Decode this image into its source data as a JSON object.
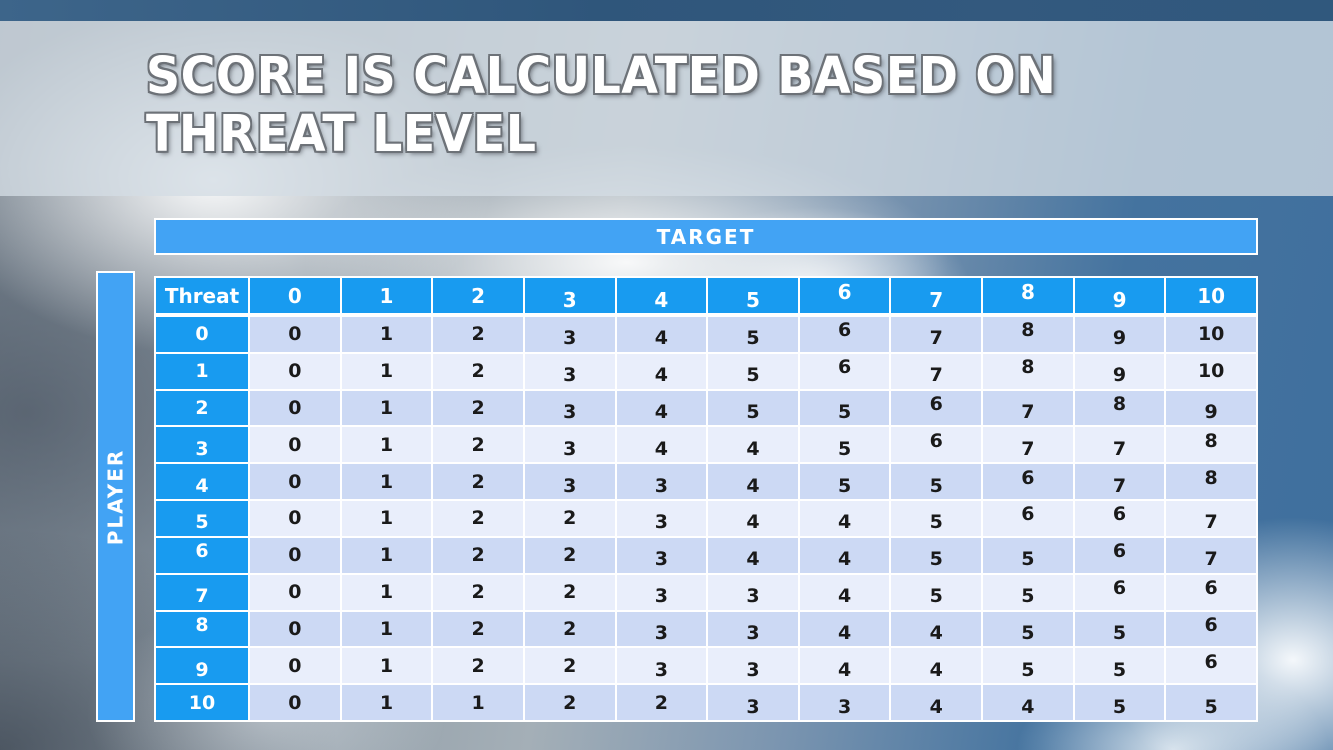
{
  "slide": {
    "title_line1": "SCORE IS CALCULATED BASED ON",
    "title_line2": "THREAT LEVEL"
  },
  "axes": {
    "target_label": "TARGET",
    "player_label": "PLAYER"
  },
  "table": {
    "corner_label": "Threat",
    "col_headers": [
      "0",
      "1",
      "2",
      "3",
      "4",
      "5",
      "6",
      "7",
      "8",
      "9",
      "10"
    ],
    "rows": [
      {
        "label": "0",
        "values": [
          "0",
          "1",
          "2",
          "3",
          "4",
          "5",
          "6",
          "7",
          "8",
          "9",
          "10"
        ]
      },
      {
        "label": "1",
        "values": [
          "0",
          "1",
          "2",
          "3",
          "4",
          "5",
          "6",
          "7",
          "8",
          "9",
          "10"
        ]
      },
      {
        "label": "2",
        "values": [
          "0",
          "1",
          "2",
          "3",
          "4",
          "5",
          "5",
          "6",
          "7",
          "8",
          "9"
        ]
      },
      {
        "label": "3",
        "values": [
          "0",
          "1",
          "2",
          "3",
          "4",
          "4",
          "5",
          "6",
          "7",
          "7",
          "8"
        ]
      },
      {
        "label": "4",
        "values": [
          "0",
          "1",
          "2",
          "3",
          "3",
          "4",
          "5",
          "5",
          "6",
          "7",
          "8"
        ]
      },
      {
        "label": "5",
        "values": [
          "0",
          "1",
          "2",
          "2",
          "3",
          "4",
          "4",
          "5",
          "6",
          "6",
          "7"
        ]
      },
      {
        "label": "6",
        "values": [
          "0",
          "1",
          "2",
          "2",
          "3",
          "4",
          "4",
          "5",
          "5",
          "6",
          "7"
        ]
      },
      {
        "label": "7",
        "values": [
          "0",
          "1",
          "2",
          "2",
          "3",
          "3",
          "4",
          "5",
          "5",
          "6",
          "6"
        ]
      },
      {
        "label": "8",
        "values": [
          "0",
          "1",
          "2",
          "2",
          "3",
          "3",
          "4",
          "4",
          "5",
          "5",
          "6"
        ]
      },
      {
        "label": "9",
        "values": [
          "0",
          "1",
          "2",
          "2",
          "3",
          "3",
          "4",
          "4",
          "5",
          "5",
          "6"
        ]
      },
      {
        "label": "10",
        "values": [
          "0",
          "1",
          "1",
          "2",
          "2",
          "3",
          "3",
          "4",
          "4",
          "5",
          "5"
        ]
      }
    ]
  },
  "colors": {
    "bar_blue": "#42a3f4",
    "header_blue": "#189bf0",
    "row_dark": "#ccd9f4",
    "row_light": "#e9eefb",
    "grid_white": "#ffffff",
    "body_text": "#1a1a1a"
  }
}
